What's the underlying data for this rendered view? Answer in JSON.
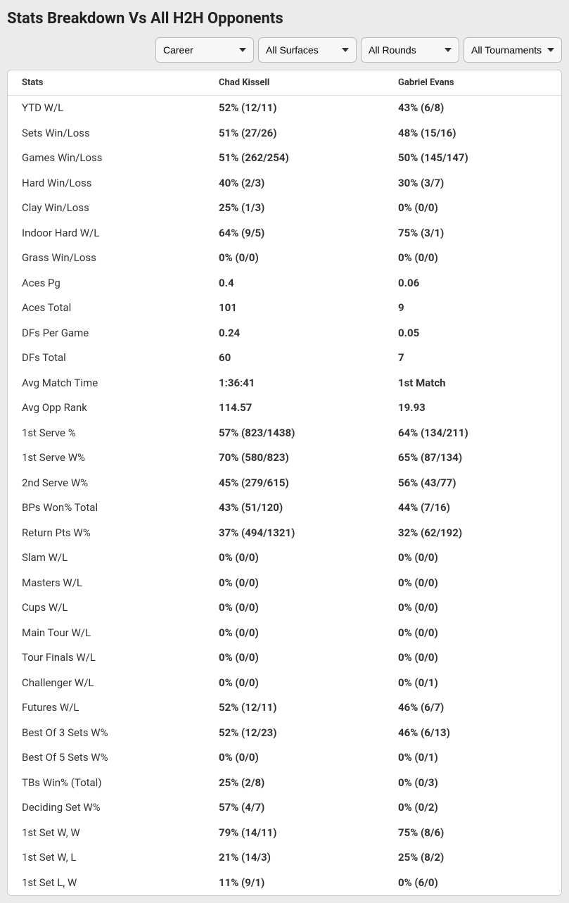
{
  "title": "Stats Breakdown Vs All H2H Opponents",
  "filters": {
    "career": {
      "selected": "Career",
      "options": [
        "Career"
      ]
    },
    "surfaces": {
      "selected": "All Surfaces",
      "options": [
        "All Surfaces"
      ]
    },
    "rounds": {
      "selected": "All Rounds",
      "options": [
        "All Rounds"
      ]
    },
    "tournaments": {
      "selected": "All Tournaments",
      "options": [
        "All Tournaments"
      ]
    }
  },
  "columns": {
    "stats": "Stats",
    "p1": "Chad Kissell",
    "p2": "Gabriel Evans"
  },
  "rows": [
    {
      "label": "YTD W/L",
      "p1": "52% (12/11)",
      "p2": "43% (6/8)"
    },
    {
      "label": "Sets Win/Loss",
      "p1": "51% (27/26)",
      "p2": "48% (15/16)"
    },
    {
      "label": "Games Win/Loss",
      "p1": "51% (262/254)",
      "p2": "50% (145/147)"
    },
    {
      "label": "Hard Win/Loss",
      "p1": "40% (2/3)",
      "p2": "30% (3/7)"
    },
    {
      "label": "Clay Win/Loss",
      "p1": "25% (1/3)",
      "p2": "0% (0/0)"
    },
    {
      "label": "Indoor Hard W/L",
      "p1": "64% (9/5)",
      "p2": "75% (3/1)"
    },
    {
      "label": "Grass Win/Loss",
      "p1": "0% (0/0)",
      "p2": "0% (0/0)"
    },
    {
      "label": "Aces Pg",
      "p1": "0.4",
      "p2": "0.06"
    },
    {
      "label": "Aces Total",
      "p1": "101",
      "p2": "9"
    },
    {
      "label": "DFs Per Game",
      "p1": "0.24",
      "p2": "0.05"
    },
    {
      "label": "DFs Total",
      "p1": "60",
      "p2": "7"
    },
    {
      "label": "Avg Match Time",
      "p1": "1:36:41",
      "p2": "1st Match"
    },
    {
      "label": "Avg Opp Rank",
      "p1": "114.57",
      "p2": "19.93"
    },
    {
      "label": "1st Serve %",
      "p1": "57% (823/1438)",
      "p2": "64% (134/211)"
    },
    {
      "label": "1st Serve W%",
      "p1": "70% (580/823)",
      "p2": "65% (87/134)"
    },
    {
      "label": "2nd Serve W%",
      "p1": "45% (279/615)",
      "p2": "56% (43/77)"
    },
    {
      "label": "BPs Won% Total",
      "p1": "43% (51/120)",
      "p2": "44% (7/16)"
    },
    {
      "label": "Return Pts W%",
      "p1": "37% (494/1321)",
      "p2": "32% (62/192)"
    },
    {
      "label": "Slam W/L",
      "p1": "0% (0/0)",
      "p2": "0% (0/0)"
    },
    {
      "label": "Masters W/L",
      "p1": "0% (0/0)",
      "p2": "0% (0/0)"
    },
    {
      "label": "Cups W/L",
      "p1": "0% (0/0)",
      "p2": "0% (0/0)"
    },
    {
      "label": "Main Tour W/L",
      "p1": "0% (0/0)",
      "p2": "0% (0/0)"
    },
    {
      "label": "Tour Finals W/L",
      "p1": "0% (0/0)",
      "p2": "0% (0/0)"
    },
    {
      "label": "Challenger W/L",
      "p1": "0% (0/0)",
      "p2": "0% (0/1)"
    },
    {
      "label": "Futures W/L",
      "p1": "52% (12/11)",
      "p2": "46% (6/7)"
    },
    {
      "label": "Best Of 3 Sets W%",
      "p1": "52% (12/23)",
      "p2": "46% (6/13)"
    },
    {
      "label": "Best Of 5 Sets W%",
      "p1": "0% (0/0)",
      "p2": "0% (0/1)"
    },
    {
      "label": "TBs Win% (Total)",
      "p1": "25% (2/8)",
      "p2": "0% (0/3)"
    },
    {
      "label": "Deciding Set W%",
      "p1": "57% (4/7)",
      "p2": "0% (0/2)"
    },
    {
      "label": "1st Set W, W",
      "p1": "79% (14/11)",
      "p2": "75% (8/6)"
    },
    {
      "label": "1st Set W, L",
      "p1": "21% (14/3)",
      "p2": "25% (8/2)"
    },
    {
      "label": "1st Set L, W",
      "p1": "11% (9/1)",
      "p2": "0% (6/0)"
    }
  ],
  "style": {
    "page_bg": "#ebebeb",
    "card_bg": "#ffffff",
    "border_color": "#cccccc",
    "header_border": "#dddddd",
    "title_color": "#222222",
    "text_color": "#333333",
    "title_fontsize": 22,
    "header_fontsize": 13,
    "cell_fontsize": 15,
    "label_fontweight": 400,
    "value_fontweight": 700,
    "row_padding_y": 8,
    "row_padding_x": 20
  }
}
